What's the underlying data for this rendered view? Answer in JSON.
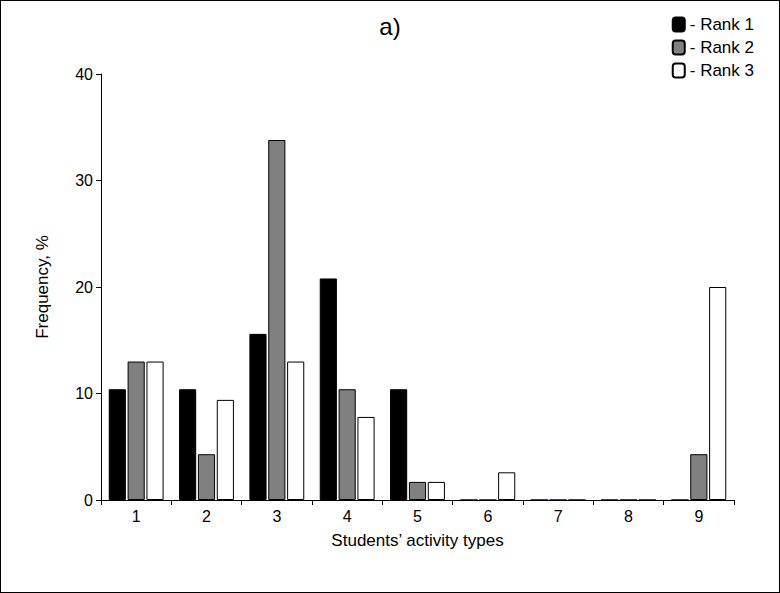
{
  "chart_data": {
    "type": "bar",
    "title": "a)",
    "x_label": "Students’ activity types",
    "y_label": "Frequency, %",
    "categories": [
      "1",
      "2",
      "3",
      "4",
      "5",
      "6",
      "7",
      "8",
      "9"
    ],
    "series": [
      {
        "name": "- Rank 1",
        "color": "#000000",
        "values": [
          10.4,
          10.4,
          15.6,
          20.8,
          10.4,
          0,
          0,
          0,
          0
        ]
      },
      {
        "name": "- Rank 2",
        "color": "#808080",
        "values": [
          13,
          4.3,
          33.8,
          10.4,
          1.7,
          0,
          0,
          0,
          4.3
        ]
      },
      {
        "name": "- Rank 3",
        "color": "#ffffff",
        "values": [
          13,
          9.4,
          13,
          7.8,
          1.7,
          2.6,
          0,
          0,
          20
        ]
      }
    ],
    "ylim": [
      0,
      40
    ],
    "yticks": [
      0,
      10,
      20,
      30,
      40
    ],
    "grid": false,
    "legend": "top-right"
  }
}
